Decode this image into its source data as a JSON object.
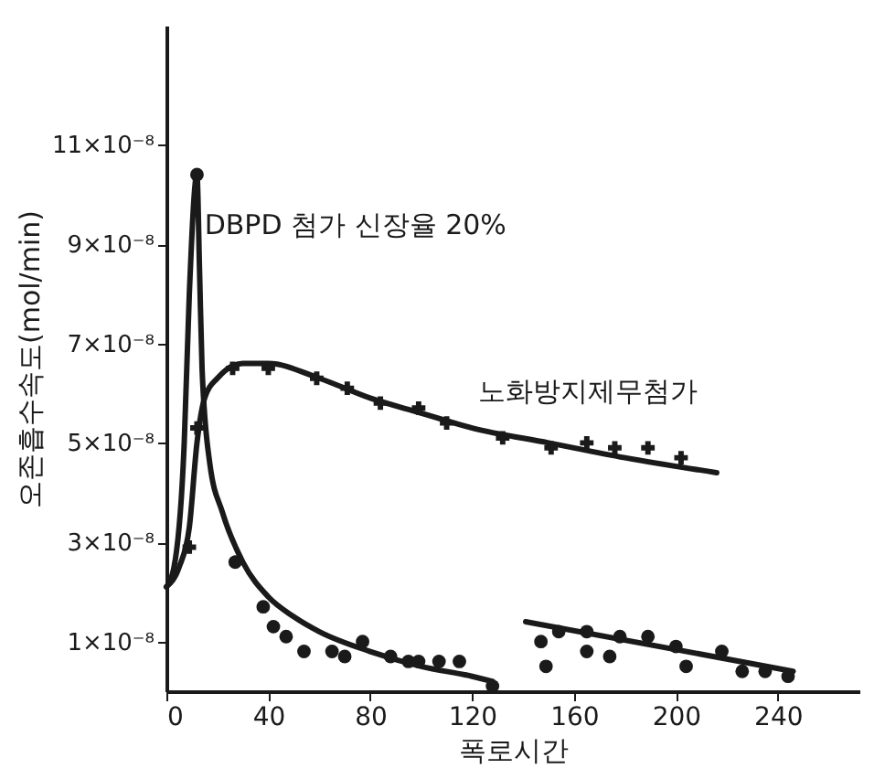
{
  "chart_data": {
    "type": "line",
    "xlabel": "폭로시간",
    "ylabel": "오존흡수속도(mol/min)",
    "xlim": [
      0,
      272
    ],
    "xticks": [
      0,
      40,
      80,
      120,
      160,
      200,
      240
    ],
    "ylim": [
      0,
      1.34e-07
    ],
    "yticks": [
      {
        "value": 1e-08,
        "label": "1×10⁻⁸"
      },
      {
        "value": 3e-08,
        "label": "3×10⁻⁸"
      },
      {
        "value": 5e-08,
        "label": "5×10⁻⁸"
      },
      {
        "value": 7e-08,
        "label": "7×10⁻⁸"
      },
      {
        "value": 9e-08,
        "label": "9×10⁻⁸"
      },
      {
        "value": 1.1e-07,
        "label": "11×10⁻⁸"
      }
    ],
    "annotations": [
      "DBPD 첨가 신장율 20%",
      "노화방지제무첨가"
    ],
    "series": [
      {
        "color": "#1a1a1a",
        "marker": "none",
        "line_style": "solid",
        "x": [
          0,
          3,
          7,
          9,
          12,
          13,
          14,
          17,
          22,
          30,
          40,
          50,
          60,
          80,
          100,
          120,
          128
        ],
        "values": [
          2.1e-08,
          2.5e-08,
          5e-08,
          8e-08,
          1.04e-07,
          8.5e-08,
          6.5e-08,
          4.6e-08,
          3.6e-08,
          2.6e-08,
          1.9e-08,
          1.5e-08,
          1.2e-08,
          8e-09,
          5e-09,
          3e-09,
          2e-09
        ]
      },
      {
        "color": "#1a1a1a",
        "marker": "none",
        "line_style": "solid",
        "x": [
          0,
          5,
          9,
          12,
          15,
          20,
          30,
          40,
          60,
          80,
          100,
          120,
          150,
          180,
          216
        ],
        "values": [
          2.1e-08,
          2.5e-08,
          3.3e-08,
          5e-08,
          5.9e-08,
          6.3e-08,
          6.6e-08,
          6.6e-08,
          6.3e-08,
          5.9e-08,
          5.6e-08,
          5.3e-08,
          5e-08,
          4.7e-08,
          4.4e-08
        ]
      },
      {
        "type": "scatter",
        "color": "#1a1a1a",
        "marker": "cross",
        "x": [
          9,
          12,
          26,
          40,
          59,
          71,
          84,
          99,
          110,
          132,
          151,
          165,
          176,
          189,
          202
        ],
        "values": [
          2.9e-08,
          5.3e-08,
          6.5e-08,
          6.5e-08,
          6.3e-08,
          6.1e-08,
          5.8e-08,
          5.7e-08,
          5.4e-08,
          5.1e-08,
          4.9e-08,
          5e-08,
          4.9e-08,
          4.9e-08,
          4.7e-08
        ]
      },
      {
        "type": "scatter",
        "color": "#1a1a1a",
        "marker": "circle",
        "x": [
          12,
          27,
          38,
          42,
          47,
          54,
          65,
          70,
          77,
          88,
          95,
          99,
          107,
          115,
          128,
          147,
          149,
          154,
          165,
          165,
          174,
          178,
          189,
          200,
          204,
          218,
          226,
          235,
          244
        ],
        "values": [
          1.04e-07,
          2.6e-08,
          1.7e-08,
          1.3e-08,
          1.1e-08,
          8e-09,
          8e-09,
          7e-09,
          1e-08,
          7e-09,
          6e-09,
          6e-09,
          6e-09,
          6e-09,
          1e-09,
          1e-08,
          5e-09,
          1.2e-08,
          1.2e-08,
          8e-09,
          7e-09,
          1.1e-08,
          1.1e-08,
          9e-09,
          5e-09,
          8e-09,
          4e-09,
          4e-09,
          3e-09
        ]
      },
      {
        "color": "#1a1a1a",
        "marker": "none",
        "line_style": "solid",
        "x": [
          141,
          246
        ],
        "values": [
          1.4e-08,
          4e-09
        ]
      }
    ]
  }
}
